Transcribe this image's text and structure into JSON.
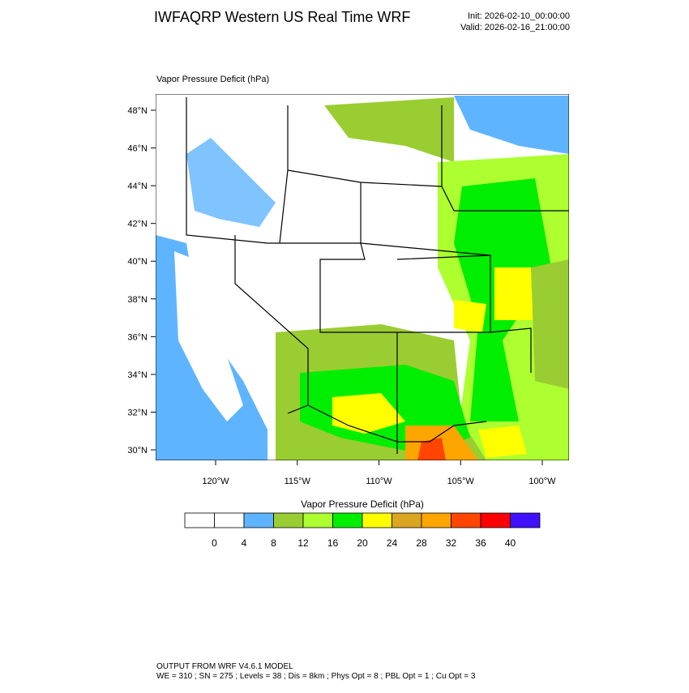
{
  "header": {
    "title": "IWFAQRP Western US Real Time WRF",
    "init": "Init: 2026-02-10_00:00:00",
    "valid": "Valid: 2026-02-16_21:00:00"
  },
  "map": {
    "title": "Vapor Pressure Deficit   (hPa)",
    "lat_ticks": [
      {
        "value": 48,
        "label": "48°N"
      },
      {
        "value": 46,
        "label": "46°N"
      },
      {
        "value": 44,
        "label": "44°N"
      },
      {
        "value": 42,
        "label": "42°N"
      },
      {
        "value": 40,
        "label": "40°N"
      },
      {
        "value": 38,
        "label": "38°N"
      },
      {
        "value": 36,
        "label": "36°N"
      },
      {
        "value": 34,
        "label": "34°N"
      },
      {
        "value": 32,
        "label": "32°N"
      },
      {
        "value": 30,
        "label": "30°N"
      }
    ],
    "lon_ticks": [
      {
        "value": -120,
        "label": "120°W"
      },
      {
        "value": -115,
        "label": "115°W"
      },
      {
        "value": -110,
        "label": "110°W"
      },
      {
        "value": -105,
        "label": "105°W"
      },
      {
        "value": -100,
        "label": "100°W"
      }
    ]
  },
  "colorbar": {
    "title": "Vapor Pressure Deficit  (hPa)",
    "ticks": [
      0,
      4,
      8,
      12,
      16,
      20,
      24,
      28,
      32,
      36,
      40
    ],
    "colors": [
      "#ffffff",
      "#ffffff",
      "#5fb4ff",
      "#9acd32",
      "#adff2f",
      "#00ee00",
      "#ffff00",
      "#daa520",
      "#ffa500",
      "#ff4500",
      "#ff0000",
      "#4010ff"
    ]
  },
  "footer": {
    "line1": "OUTPUT FROM WRF V4.6.1 MODEL",
    "line2": "WE = 310 ; SN = 275 ; Levels = 38 ; Dis = 8km ; Phys Opt = 8 ; PBL Opt = 1 ; Cu Opt = 3"
  }
}
